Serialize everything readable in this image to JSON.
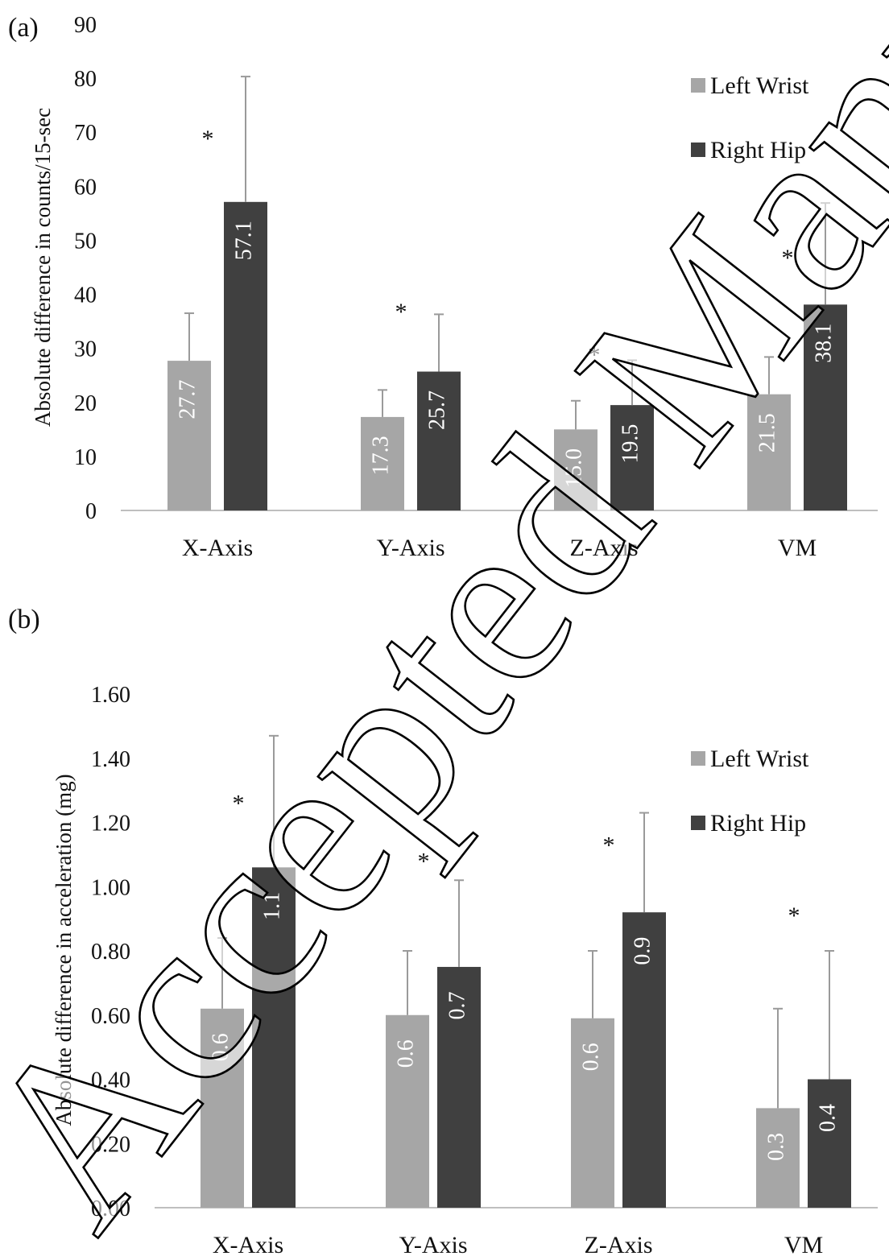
{
  "colors": {
    "left_wrist": "#a6a6a6",
    "right_hip": "#404040",
    "axis": "#bfbfbf",
    "error": "#9a9a9a"
  },
  "watermark": "Accepted Manuscript",
  "chart_data": [
    {
      "panel_label": "(a)",
      "type": "bar",
      "title": "",
      "xlabel": "",
      "ylabel": "Absolute difference in counts/15-sec",
      "ylim": [
        0,
        90
      ],
      "yticks": [
        "0",
        "10",
        "20",
        "30",
        "40",
        "50",
        "60",
        "70",
        "80",
        "90"
      ],
      "categories": [
        "X-Axis",
        "Y-Axis",
        "Z-Axis",
        "VM"
      ],
      "series": [
        {
          "name": "Left Wrist",
          "values": [
            27.7,
            17.3,
            15.0,
            21.5
          ],
          "labels": [
            "27.7",
            "17.3",
            "15.0",
            "21.5"
          ],
          "error_upper": [
            36.5,
            22.3,
            20.3,
            28.4
          ]
        },
        {
          "name": "Right Hip",
          "values": [
            57.1,
            25.7,
            19.5,
            38.1
          ],
          "labels": [
            "57.1",
            "25.7",
            "19.5",
            "38.1"
          ],
          "error_upper": [
            80.3,
            36.3,
            27.8,
            56.9
          ]
        }
      ],
      "significance": [
        {
          "category": "X-Axis",
          "label": "*",
          "y": 70
        },
        {
          "category": "Y-Axis",
          "label": "*",
          "y": 38
        },
        {
          "category": "Z-Axis",
          "label": "*",
          "y": 30
        },
        {
          "category": "VM",
          "label": "*",
          "y": 48
        }
      ],
      "legend": "right",
      "grid": false
    },
    {
      "panel_label": "(b)",
      "type": "bar",
      "title": "",
      "xlabel": "",
      "ylabel": "Absolute difference in acceleration (mg)",
      "ylim": [
        0,
        1.6
      ],
      "yticks": [
        "0.00",
        "0.20",
        "0.40",
        "0.60",
        "0.80",
        "1.00",
        "1.20",
        "1.40",
        "1.60"
      ],
      "categories": [
        "X-Axis",
        "Y-Axis",
        "Z-Axis",
        "VM"
      ],
      "series": [
        {
          "name": "Left Wrist",
          "values": [
            0.62,
            0.6,
            0.59,
            0.31
          ],
          "labels": [
            "0.6",
            "0.6",
            "0.6",
            "0.3"
          ],
          "error_upper": [
            0.84,
            0.8,
            0.8,
            0.62
          ]
        },
        {
          "name": "Right Hip",
          "values": [
            1.06,
            0.75,
            0.92,
            0.4
          ],
          "labels": [
            "1.1",
            "0.7",
            "0.9",
            "0.4"
          ],
          "error_upper": [
            1.47,
            1.02,
            1.23,
            0.8
          ]
        }
      ],
      "significance": [
        {
          "category": "X-Axis",
          "label": "*",
          "y": 1.28
        },
        {
          "category": "Y-Axis",
          "label": "*",
          "y": 1.1
        },
        {
          "category": "Z-Axis",
          "label": "*",
          "y": 1.15
        },
        {
          "category": "VM",
          "label": "*",
          "y": 0.93
        }
      ],
      "legend": "right",
      "grid": false
    }
  ]
}
